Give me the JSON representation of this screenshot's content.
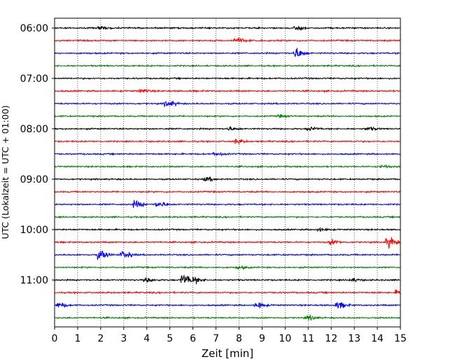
{
  "chart_data": {
    "type": "line",
    "chart_kind": "helicorder",
    "title": "",
    "xlabel": "Zeit  [min]",
    "ylabel": "UTC (Lokalzeit = UTC + 01:00)",
    "xlim": [
      0,
      15
    ],
    "x_ticks": [
      "0",
      "1",
      "2",
      "3",
      "4",
      "5",
      "6",
      "7",
      "8",
      "9",
      "10",
      "11",
      "12",
      "13",
      "14",
      "15"
    ],
    "y_tick_labels": [
      "06:00",
      "07:00",
      "08:00",
      "09:00",
      "10:00",
      "11:00"
    ],
    "grid": "vertical dotted lines at each minute",
    "trace_interval_min": 15,
    "trace_colors": [
      "#000000",
      "#ff0000",
      "#0000ff",
      "#008000"
    ],
    "traces": [
      {
        "start": "06:00",
        "color_index": 0,
        "events": [
          {
            "t": 2.0,
            "amp": 0.4
          },
          {
            "t": 10.5,
            "amp": 0.4
          }
        ]
      },
      {
        "start": "06:15",
        "color_index": 1,
        "events": [
          {
            "t": 7.9,
            "amp": 0.6
          }
        ]
      },
      {
        "start": "06:30",
        "color_index": 2,
        "events": [
          {
            "t": 10.5,
            "amp": 1.2
          }
        ]
      },
      {
        "start": "06:45",
        "color_index": 3,
        "events": []
      },
      {
        "start": "07:00",
        "color_index": 0,
        "events": []
      },
      {
        "start": "07:15",
        "color_index": 1,
        "events": [
          {
            "t": 3.8,
            "amp": 0.4
          }
        ]
      },
      {
        "start": "07:30",
        "color_index": 2,
        "events": [
          {
            "t": 4.9,
            "amp": 0.8
          }
        ]
      },
      {
        "start": "07:45",
        "color_index": 3,
        "events": [
          {
            "t": 9.8,
            "amp": 0.3
          }
        ]
      },
      {
        "start": "08:00",
        "color_index": 0,
        "events": [
          {
            "t": 7.6,
            "amp": 0.4
          },
          {
            "t": 11.1,
            "amp": 0.4
          },
          {
            "t": 13.6,
            "amp": 0.4
          }
        ]
      },
      {
        "start": "08:15",
        "color_index": 1,
        "events": [
          {
            "t": 7.9,
            "amp": 0.5
          }
        ]
      },
      {
        "start": "08:30",
        "color_index": 2,
        "events": [
          {
            "t": 7.0,
            "amp": 0.4
          }
        ]
      },
      {
        "start": "08:45",
        "color_index": 3,
        "events": [
          {
            "t": 14.2,
            "amp": 0.3
          }
        ]
      },
      {
        "start": "09:00",
        "color_index": 0,
        "events": [
          {
            "t": 6.6,
            "amp": 0.5
          }
        ]
      },
      {
        "start": "09:15",
        "color_index": 1,
        "events": []
      },
      {
        "start": "09:30",
        "color_index": 2,
        "events": [
          {
            "t": 3.5,
            "amp": 0.8
          },
          {
            "t": 4.5,
            "amp": 0.6
          }
        ]
      },
      {
        "start": "09:45",
        "color_index": 3,
        "events": []
      },
      {
        "start": "10:00",
        "color_index": 0,
        "events": [
          {
            "t": 11.5,
            "amp": 0.3
          }
        ]
      },
      {
        "start": "10:15",
        "color_index": 1,
        "events": [
          {
            "t": 12.0,
            "amp": 0.6
          },
          {
            "t": 14.5,
            "amp": 1.2
          }
        ]
      },
      {
        "start": "10:30",
        "color_index": 2,
        "events": [
          {
            "t": 2.0,
            "amp": 1.0
          },
          {
            "t": 3.0,
            "amp": 0.8
          }
        ]
      },
      {
        "start": "10:45",
        "color_index": 3,
        "events": [
          {
            "t": 8.0,
            "amp": 0.3
          }
        ]
      },
      {
        "start": "11:00",
        "color_index": 0,
        "events": [
          {
            "t": 4.0,
            "amp": 0.5
          },
          {
            "t": 5.6,
            "amp": 1.3
          },
          {
            "t": 6.1,
            "amp": 0.6
          },
          {
            "t": 12.9,
            "amp": 0.4
          }
        ]
      },
      {
        "start": "11:15",
        "color_index": 1,
        "events": [
          {
            "t": 14.9,
            "amp": 0.5
          }
        ]
      },
      {
        "start": "11:30",
        "color_index": 2,
        "events": [
          {
            "t": 0.2,
            "amp": 0.6
          },
          {
            "t": 8.8,
            "amp": 0.7
          },
          {
            "t": 12.3,
            "amp": 0.8
          }
        ]
      },
      {
        "start": "11:45",
        "color_index": 3,
        "events": [
          {
            "t": 11.0,
            "amp": 0.5
          }
        ]
      }
    ]
  }
}
